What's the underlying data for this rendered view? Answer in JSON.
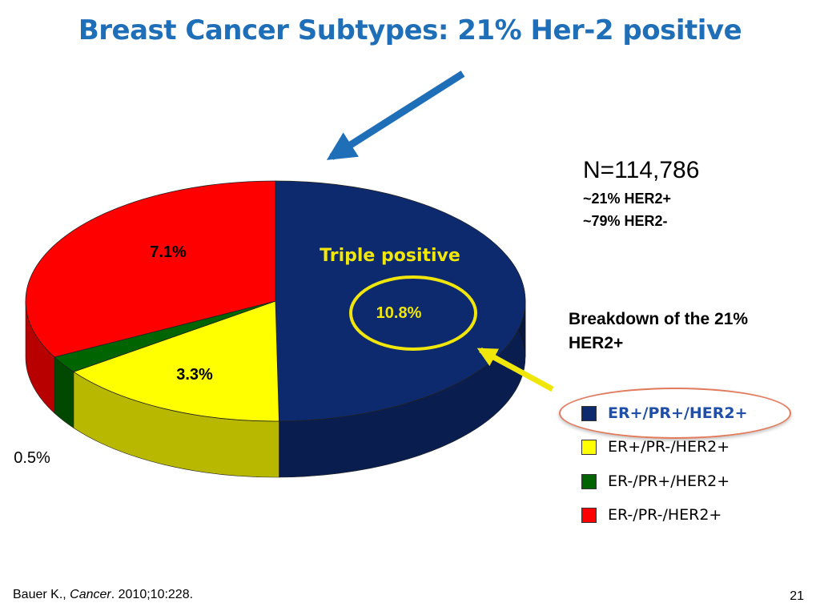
{
  "slide": {
    "title": "Breast Cancer Subtypes: 21% Her-2 positive",
    "page_number": "21",
    "citation": {
      "author": "Bauer K., ",
      "journal": "Cancer",
      "rest": ". 2010;10:228."
    }
  },
  "stats": {
    "n": "N=114,786",
    "her2_pos": "~21% HER2+",
    "her2_neg": "~79% HER2-"
  },
  "breakdown_heading": "Breakdown of the 21% HER2+",
  "colors": {
    "title": "#1f6fb8",
    "arrow": "#1f6fb8",
    "highlight": "#f0e60a"
  },
  "chart_data": {
    "type": "pie",
    "title": "",
    "slices": [
      {
        "label": "ER+/PR+/HER2+",
        "value": 10.8,
        "display": "10.8%",
        "color": "#0d2a6e",
        "annotation": "Triple positive"
      },
      {
        "label": "ER+/PR-/HER2+",
        "value": 3.3,
        "display": "3.3%",
        "color": "#ffff00"
      },
      {
        "label": "ER-/PR+/HER2+",
        "value": 0.5,
        "display": "0.5%",
        "color": "#006400"
      },
      {
        "label": "ER-/PR-/HER2+",
        "value": 7.1,
        "display": "7.1%",
        "color": "#ff0000"
      }
    ],
    "legend_position": "right",
    "style": "3d"
  },
  "legend": {
    "items": [
      {
        "label": "ER+/PR+/HER2+",
        "color": "#0d2a6e",
        "highlighted": true
      },
      {
        "label": "ER+/PR-/HER2+",
        "color": "#ffff00"
      },
      {
        "label": "ER-/PR+/HER2+",
        "color": "#006400"
      },
      {
        "label": "ER-/PR-/HER2+",
        "color": "#ff0000"
      }
    ]
  }
}
